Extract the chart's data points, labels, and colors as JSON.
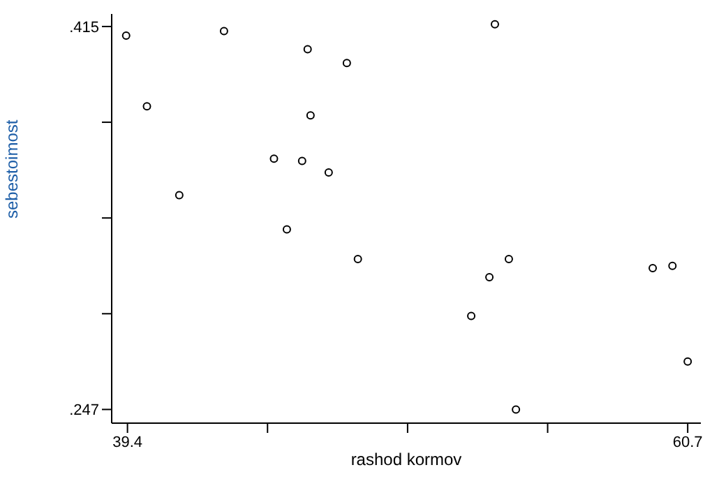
{
  "chart_data": {
    "type": "scatter",
    "xlabel": "rashod kormov",
    "ylabel": "sebestoimost",
    "x": [
      39.35,
      43.07,
      46.25,
      47.74,
      46.36,
      40.14,
      44.97,
      46.04,
      47.05,
      41.37,
      45.46,
      48.16,
      53.37,
      53.9,
      53.16,
      52.47,
      54.17,
      59.37,
      60.12,
      60.7
    ],
    "series": [
      {
        "color": "#000000",
        "values": [
          0.411,
          0.413,
          0.405,
          0.399,
          0.376,
          0.38,
          0.357,
          0.356,
          0.351,
          0.341,
          0.326,
          0.313,
          0.416,
          0.313,
          0.305,
          0.288,
          0.247,
          0.309,
          0.31,
          0.268
        ]
      }
    ],
    "xlim": [
      38.8,
      61.2
    ],
    "ylim": [
      0.241,
      0.4205
    ],
    "xticks": [
      {
        "value": 39.4,
        "label": "39.4"
      },
      {
        "value": 44.725,
        "label": null
      },
      {
        "value": 50.05,
        "label": null
      },
      {
        "value": 55.375,
        "label": null
      },
      {
        "value": 60.7,
        "label": "60.7"
      }
    ],
    "yticks": [
      {
        "value": 0.247,
        "label": ".247"
      },
      {
        "value": 0.289,
        "label": null
      },
      {
        "value": 0.331,
        "label": null
      },
      {
        "value": 0.373,
        "label": null
      },
      {
        "value": 0.415,
        "label": ".415"
      }
    ],
    "marker": "circle",
    "grid": false
  }
}
